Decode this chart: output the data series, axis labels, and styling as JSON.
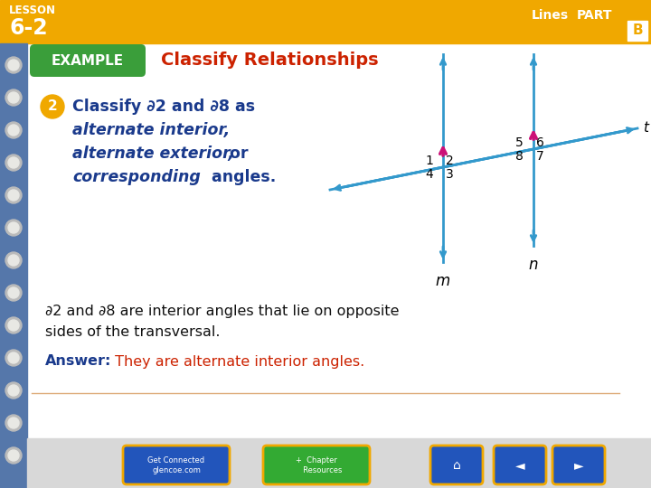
{
  "bg_color": "#f0f0eb",
  "header_bg": "#f0a800",
  "header_text_lesson": "LESSON",
  "header_text_num": "6-2",
  "header_right_text": "Lines",
  "header_right_part": "PART",
  "header_right_b": "B",
  "example_label": "EXAMPLE",
  "example_label_bg": "#3a9e3a",
  "title_text": "Classify Relationships",
  "title_color": "#cc2200",
  "circle_num": "2",
  "circle_color": "#f0a800",
  "body_color": "#1a3a8c",
  "explain_color": "#111111",
  "answer_label": "Answer:",
  "answer_label_color": "#1a3a8c",
  "answer_text": " They are alternate interior angles.",
  "answer_text_color": "#cc2200",
  "line_color_blue": "#3399cc",
  "line_color_pink": "#cc1177",
  "left_bar_color": "#5577aa",
  "ring_outer": "#bbbbbb",
  "ring_inner": "#e8e8e4"
}
